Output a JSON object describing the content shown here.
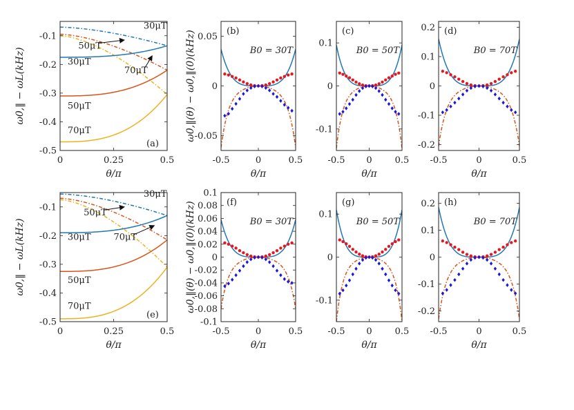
{
  "colors": {
    "blue": "#1f77b4",
    "orange": "#d95319",
    "gold": "#edb120",
    "red_dots": "#e8171f",
    "blue_dots": "#1a1ad6",
    "axis": "#222222"
  },
  "chart_data": [
    {
      "id": "a",
      "type": "line",
      "panel_label": "(a)",
      "xlabel": "θ/π",
      "ylabel": "ω0,‖ − ωL(kHz)",
      "xlim": [
        0,
        0.5
      ],
      "ylim": [
        -0.5,
        -0.05
      ],
      "xticks": [
        0,
        0.25,
        0.5
      ],
      "xtick_labels": [
        "0",
        "0.25",
        "0.5"
      ],
      "yticks": [
        -0.5,
        -0.4,
        -0.3,
        -0.2,
        -0.1
      ],
      "ytick_labels": [
        "-0.5",
        "-0.4",
        "-0.3",
        "-0.2",
        "-0.1"
      ],
      "series": [
        {
          "name": "30μT dashed",
          "style": "dashed",
          "color": "blue",
          "start": -0.07,
          "end": -0.135
        },
        {
          "name": "50μT dashed",
          "style": "dashed",
          "color": "orange",
          "start": -0.095,
          "end": -0.22
        },
        {
          "name": "70μT dashed",
          "style": "dashed",
          "color": "gold",
          "start": -0.1,
          "end": -0.305
        },
        {
          "name": "30μT solid",
          "style": "solid",
          "color": "blue",
          "start": -0.175,
          "end": -0.135
        },
        {
          "name": "50μT solid",
          "style": "solid",
          "color": "orange",
          "start": -0.31,
          "end": -0.22
        },
        {
          "name": "70μT solid",
          "style": "solid",
          "color": "gold",
          "start": -0.47,
          "end": -0.305
        }
      ],
      "annotations": [
        {
          "text": "30μT",
          "x": 0.39,
          "y": -0.075
        },
        {
          "text": "50μT",
          "x": 0.085,
          "y": -0.145,
          "arrow_to": [
            0.3,
            -0.115
          ]
        },
        {
          "text": "70μT",
          "x": 0.3,
          "y": -0.23,
          "arrow_to": [
            0.43,
            -0.17
          ]
        },
        {
          "text": "30μT",
          "x": 0.035,
          "y": -0.2
        },
        {
          "text": "50μT",
          "x": 0.035,
          "y": -0.355
        },
        {
          "text": "70μT",
          "x": 0.035,
          "y": -0.44
        }
      ]
    },
    {
      "id": "b",
      "type": "line",
      "panel_label": "(b)",
      "field_label": "B0 = 30T",
      "xlabel": "θ/π",
      "ylabel": "ω0,‖(θ) − ω0,‖(0)(kHz)",
      "xlim": [
        -0.5,
        0.5
      ],
      "ylim": [
        -0.065,
        0.065
      ],
      "xticks": [
        -0.5,
        0,
        0.5
      ],
      "xtick_labels": [
        "-0.5",
        "0",
        "0.5"
      ],
      "yticks": [
        -0.05,
        0,
        0.05
      ],
      "ytick_labels": [
        "-0.05",
        "0",
        "0.05"
      ],
      "upper_edge": 0.037,
      "lower_edge": -0.062,
      "red_dots": {
        "x": [
          -0.45,
          -0.4,
          -0.35,
          -0.3,
          -0.25,
          -0.2,
          -0.15,
          -0.1,
          -0.05,
          0,
          0.05,
          0.1,
          0.15,
          0.2,
          0.25,
          0.3,
          0.35,
          0.4,
          0.45
        ],
        "y": [
          0.012,
          0.011,
          0.0095,
          0.008,
          0.006,
          0.004,
          0.0023,
          0.001,
          0.0003,
          0,
          0.0003,
          0.001,
          0.0023,
          0.004,
          0.006,
          0.008,
          0.0095,
          0.011,
          0.012
        ]
      },
      "blue_dots": {
        "x": [
          -0.45,
          -0.4,
          -0.35,
          -0.3,
          -0.25,
          -0.2,
          -0.15,
          -0.1,
          -0.05,
          0,
          0.05,
          0.1,
          0.15,
          0.2,
          0.25,
          0.3,
          0.35,
          0.4,
          0.45
        ],
        "y": [
          -0.03,
          -0.028,
          -0.023,
          -0.018,
          -0.013,
          -0.008,
          -0.0045,
          -0.002,
          -0.0005,
          0,
          -0.0005,
          -0.002,
          -0.0045,
          -0.008,
          -0.011,
          -0.015,
          -0.019,
          -0.022,
          -0.025
        ]
      }
    },
    {
      "id": "c",
      "type": "line",
      "panel_label": "(c)",
      "field_label": "B0 = 50T",
      "xlabel": "θ/π",
      "xlim": [
        -0.5,
        0.5
      ],
      "ylim": [
        -0.15,
        0.15
      ],
      "xticks": [
        -0.5,
        0,
        0.5
      ],
      "xtick_labels": [
        "-0.5",
        "0",
        "0.5"
      ],
      "yticks": [
        -0.1,
        0,
        0.1
      ],
      "ytick_labels": [
        "-0.1",
        "0",
        "0.1"
      ],
      "upper_edge": 0.095,
      "lower_edge": -0.145,
      "red_dots": {
        "x": [
          -0.45,
          -0.4,
          -0.35,
          -0.3,
          -0.25,
          -0.2,
          -0.15,
          -0.1,
          -0.05,
          0,
          0.05,
          0.1,
          0.15,
          0.2,
          0.25,
          0.3,
          0.35,
          0.4,
          0.45
        ],
        "y": [
          0.03,
          0.027,
          0.023,
          0.019,
          0.014,
          0.009,
          0.005,
          0.002,
          0.0005,
          0,
          0.0005,
          0.002,
          0.005,
          0.009,
          0.014,
          0.019,
          0.023,
          0.027,
          0.03
        ]
      },
      "blue_dots": {
        "x": [
          -0.45,
          -0.4,
          -0.35,
          -0.3,
          -0.25,
          -0.2,
          -0.15,
          -0.1,
          -0.05,
          0,
          0.05,
          0.1,
          0.15,
          0.2,
          0.25,
          0.3,
          0.35,
          0.4,
          0.45
        ],
        "y": [
          -0.065,
          -0.06,
          -0.052,
          -0.042,
          -0.032,
          -0.021,
          -0.012,
          -0.005,
          -0.0012,
          0,
          -0.0012,
          -0.005,
          -0.012,
          -0.021,
          -0.032,
          -0.042,
          -0.052,
          -0.06,
          -0.065
        ]
      }
    },
    {
      "id": "d",
      "type": "line",
      "panel_label": "(d)",
      "field_label": "B0 = 70T",
      "xlabel": "θ/π",
      "xlim": [
        -0.5,
        0.5
      ],
      "ylim": [
        -0.22,
        0.22
      ],
      "xticks": [
        -0.5,
        0,
        0.5
      ],
      "xtick_labels": [
        "-0.5",
        "0",
        "0.5"
      ],
      "yticks": [
        -0.2,
        -0.1,
        0,
        0.1,
        0.2
      ],
      "ytick_labels": [
        "-0.2",
        "-0.1",
        "0",
        "0.1",
        "0.2"
      ],
      "upper_edge": 0.16,
      "lower_edge": -0.205,
      "red_dots": {
        "x": [
          -0.45,
          -0.4,
          -0.35,
          -0.3,
          -0.25,
          -0.2,
          -0.15,
          -0.1,
          -0.05,
          0,
          0.05,
          0.1,
          0.15,
          0.2,
          0.25,
          0.3,
          0.35,
          0.4,
          0.45
        ],
        "y": [
          0.05,
          0.045,
          0.038,
          0.031,
          0.023,
          0.015,
          0.008,
          0.0035,
          0.0009,
          0,
          0.0009,
          0.0035,
          0.008,
          0.015,
          0.023,
          0.031,
          0.038,
          0.045,
          0.05
        ]
      },
      "blue_dots": {
        "x": [
          -0.45,
          -0.4,
          -0.35,
          -0.3,
          -0.25,
          -0.2,
          -0.15,
          -0.1,
          -0.05,
          0,
          0.05,
          0.1,
          0.15,
          0.2,
          0.25,
          0.3,
          0.35,
          0.4,
          0.45
        ],
        "y": [
          -0.09,
          -0.082,
          -0.07,
          -0.057,
          -0.043,
          -0.029,
          -0.016,
          -0.007,
          -0.0018,
          0,
          -0.0018,
          -0.007,
          -0.016,
          -0.029,
          -0.043,
          -0.057,
          -0.07,
          -0.082,
          -0.09
        ]
      }
    },
    {
      "id": "e",
      "type": "line",
      "panel_label": "(e)",
      "xlabel": "θ/π",
      "ylabel": "ω0,‖ − ωL(kHz)",
      "xlim": [
        0,
        0.5
      ],
      "ylim": [
        -0.5,
        -0.05
      ],
      "xticks": [
        0,
        0.25,
        0.5
      ],
      "xtick_labels": [
        "0",
        "0.25",
        "0.5"
      ],
      "yticks": [
        -0.5,
        -0.4,
        -0.3,
        -0.2,
        -0.1
      ],
      "ytick_labels": [
        "-0.5",
        "-0.4",
        "-0.3",
        "-0.2",
        "-0.1"
      ],
      "series": [
        {
          "name": "30μT dashed",
          "style": "dashed",
          "color": "blue",
          "start": -0.055,
          "end": -0.13
        },
        {
          "name": "50μT dashed",
          "style": "dashed",
          "color": "orange",
          "start": -0.07,
          "end": -0.215
        },
        {
          "name": "70μT dashed",
          "style": "dashed",
          "color": "gold",
          "start": -0.075,
          "end": -0.31
        },
        {
          "name": "30μT solid",
          "style": "solid",
          "color": "blue",
          "start": -0.19,
          "end": -0.13
        },
        {
          "name": "50μT solid",
          "style": "solid",
          "color": "orange",
          "start": -0.325,
          "end": -0.215
        },
        {
          "name": "70μT solid",
          "style": "solid",
          "color": "gold",
          "start": -0.49,
          "end": -0.31
        }
      ],
      "annotations": [
        {
          "text": "30μT",
          "x": 0.39,
          "y": -0.065
        },
        {
          "text": "50μT",
          "x": 0.11,
          "y": -0.13,
          "arrow_to": [
            0.3,
            -0.1
          ]
        },
        {
          "text": "70μT",
          "x": 0.25,
          "y": -0.215,
          "arrow_to": [
            0.44,
            -0.165
          ]
        },
        {
          "text": "30μT",
          "x": 0.035,
          "y": -0.215
        },
        {
          "text": "50μT",
          "x": 0.035,
          "y": -0.365
        },
        {
          "text": "70μT",
          "x": 0.035,
          "y": -0.455
        }
      ]
    },
    {
      "id": "f",
      "type": "line",
      "panel_label": "(f)",
      "field_label": "B0 = 30T",
      "xlabel": "θ/π",
      "ylabel": "ω0,‖(θ) − ω0,‖(0)(kHz)",
      "xlim": [
        -0.5,
        0.5
      ],
      "ylim": [
        -0.1,
        0.1
      ],
      "xticks": [
        -0.5,
        0,
        0.5
      ],
      "xtick_labels": [
        "-0.5",
        "0",
        "0.5"
      ],
      "yticks": [
        -0.1,
        -0.08,
        -0.06,
        -0.04,
        -0.02,
        0,
        0.02,
        0.04,
        0.06,
        0.08,
        0.1
      ],
      "ytick_labels": [
        "-0.1",
        "-0.08",
        "-0.06",
        "-0.04",
        "-0.02",
        "0",
        "0.02",
        "0.04",
        "0.06",
        "0.08",
        "0.1"
      ],
      "upper_edge": 0.058,
      "lower_edge": -0.08,
      "red_dots": {
        "x": [
          -0.45,
          -0.4,
          -0.35,
          -0.3,
          -0.25,
          -0.2,
          -0.15,
          -0.1,
          -0.05,
          0,
          0.05,
          0.1,
          0.15,
          0.2,
          0.25,
          0.3,
          0.35,
          0.4,
          0.45
        ],
        "y": [
          0.022,
          0.02,
          0.017,
          0.014,
          0.01,
          0.0068,
          0.0038,
          0.0016,
          0.0004,
          0,
          0.0004,
          0.0016,
          0.0038,
          0.0068,
          0.01,
          0.014,
          0.017,
          0.02,
          0.022
        ]
      },
      "blue_dots": {
        "x": [
          -0.45,
          -0.4,
          -0.35,
          -0.3,
          -0.25,
          -0.2,
          -0.15,
          -0.1,
          -0.05,
          0,
          0.05,
          0.1,
          0.15,
          0.2,
          0.25,
          0.3,
          0.35,
          0.4,
          0.45
        ],
        "y": [
          -0.045,
          -0.041,
          -0.035,
          -0.028,
          -0.021,
          -0.014,
          -0.0078,
          -0.0034,
          -0.0008,
          0,
          -0.0008,
          -0.0034,
          -0.0078,
          -0.014,
          -0.021,
          -0.028,
          -0.034,
          -0.038,
          -0.04
        ]
      }
    },
    {
      "id": "g",
      "type": "line",
      "panel_label": "(g)",
      "field_label": "B0 = 50T",
      "xlabel": "θ/π",
      "xlim": [
        -0.5,
        0.5
      ],
      "ylim": [
        -0.15,
        0.15
      ],
      "xticks": [
        -0.5,
        0,
        0.5
      ],
      "xtick_labels": [
        "-0.5",
        "0",
        "0.5"
      ],
      "yticks": [
        -0.1,
        0,
        0.1
      ],
      "ytick_labels": [
        "-0.1",
        "0",
        "0.1"
      ],
      "upper_edge": 0.11,
      "lower_edge": -0.15,
      "red_dots": {
        "x": [
          -0.45,
          -0.4,
          -0.35,
          -0.3,
          -0.25,
          -0.2,
          -0.15,
          -0.1,
          -0.05,
          0,
          0.05,
          0.1,
          0.15,
          0.2,
          0.25,
          0.3,
          0.35,
          0.4,
          0.45
        ],
        "y": [
          0.04,
          0.036,
          0.031,
          0.025,
          0.018,
          0.012,
          0.0068,
          0.003,
          0.0008,
          0,
          0.0008,
          0.003,
          0.0068,
          0.012,
          0.018,
          0.025,
          0.031,
          0.036,
          0.04
        ]
      },
      "blue_dots": {
        "x": [
          -0.45,
          -0.4,
          -0.35,
          -0.3,
          -0.25,
          -0.2,
          -0.15,
          -0.1,
          -0.05,
          0,
          0.05,
          0.1,
          0.15,
          0.2,
          0.25,
          0.3,
          0.35,
          0.4,
          0.45
        ],
        "y": [
          -0.085,
          -0.077,
          -0.066,
          -0.054,
          -0.04,
          -0.027,
          -0.015,
          -0.0065,
          -0.0016,
          0,
          -0.0016,
          -0.0065,
          -0.015,
          -0.027,
          -0.04,
          -0.054,
          -0.066,
          -0.077,
          -0.085
        ]
      }
    },
    {
      "id": "h",
      "type": "line",
      "panel_label": "(h)",
      "field_label": "B0 = 70T",
      "xlabel": "θ/π",
      "xlim": [
        -0.5,
        0.5
      ],
      "ylim": [
        -0.24,
        0.24
      ],
      "xticks": [
        -0.5,
        0,
        0.5
      ],
      "xtick_labels": [
        "-0.5",
        "0",
        "0.5"
      ],
      "yticks": [
        -0.2,
        -0.1,
        0,
        0.1,
        0.2
      ],
      "ytick_labels": [
        "-0.2",
        "-0.1",
        "0",
        "0.1",
        "0.2"
      ],
      "upper_edge": 0.185,
      "lower_edge": -0.23,
      "red_dots": {
        "x": [
          -0.45,
          -0.4,
          -0.35,
          -0.3,
          -0.25,
          -0.2,
          -0.15,
          -0.1,
          -0.05,
          0,
          0.05,
          0.1,
          0.15,
          0.2,
          0.25,
          0.3,
          0.35,
          0.4,
          0.45
        ],
        "y": [
          0.06,
          0.054,
          0.046,
          0.037,
          0.028,
          0.018,
          0.01,
          0.0045,
          0.0011,
          0,
          0.0011,
          0.0045,
          0.01,
          0.018,
          0.028,
          0.037,
          0.046,
          0.054,
          0.06
        ]
      },
      "blue_dots": {
        "x": [
          -0.45,
          -0.4,
          -0.35,
          -0.3,
          -0.25,
          -0.2,
          -0.15,
          -0.1,
          -0.05,
          0,
          0.05,
          0.1,
          0.15,
          0.2,
          0.25,
          0.3,
          0.35,
          0.4,
          0.45
        ],
        "y": [
          -0.135,
          -0.122,
          -0.104,
          -0.085,
          -0.064,
          -0.043,
          -0.024,
          -0.01,
          -0.0025,
          0,
          -0.0025,
          -0.01,
          -0.024,
          -0.043,
          -0.064,
          -0.085,
          -0.104,
          -0.122,
          -0.135
        ]
      }
    }
  ]
}
